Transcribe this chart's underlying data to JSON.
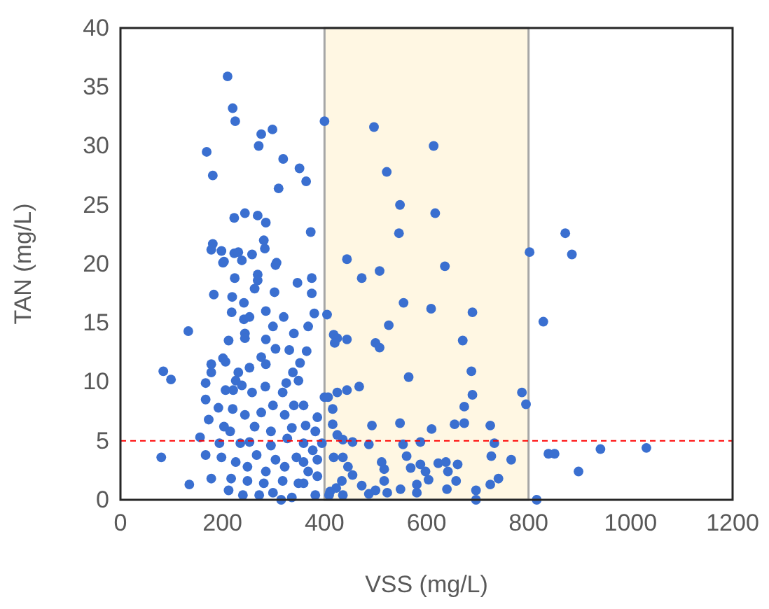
{
  "chart_data": {
    "type": "scatter",
    "xlabel": "VSS (mg/L)",
    "ylabel": "TAN (mg/L)",
    "xlim": [
      0,
      1200
    ],
    "xticks": [
      0,
      200,
      400,
      600,
      800,
      1000,
      1200
    ],
    "ylim": [
      0,
      40
    ],
    "yticks": [
      0,
      5,
      10,
      15,
      20,
      25,
      30,
      35,
      40
    ],
    "marker": "circle",
    "bands": [
      {
        "axis": "x",
        "from": 400,
        "to": 800,
        "color": "#fff7e3"
      }
    ],
    "ref_lines": [
      {
        "axis": "y",
        "value": 5,
        "color": "#ff0000",
        "line_style": "dashed"
      }
    ],
    "series": [
      {
        "color": "#3a6fd0",
        "x": [
          210,
          220,
          225,
          276,
          298,
          271,
          169,
          319,
          351,
          364,
          181,
          310,
          400,
          223,
          244,
          269,
          285,
          373,
          181,
          178,
          198,
          223,
          231,
          258,
          281,
          283,
          238,
          201,
          306,
          497,
          614,
          522,
          548,
          617,
          546,
          444,
          802,
          636,
          473,
          508,
          555,
          609,
          690,
          526,
          405,
          671,
          500,
          508,
          418,
          425,
          444,
          420,
          688,
          565,
          787,
          795,
          690,
          674,
          468,
          444,
          425,
          407,
          416,
          493,
          548,
          655,
          674,
          725,
          610,
          416,
          425,
          436,
          455,
          487,
          554,
          588,
          733,
          727,
          766,
          561,
          512,
          436,
          418,
          446,
          455,
          517,
          569,
          588,
          598,
          623,
          638,
          642,
          661,
          658,
          604,
          581,
          549,
          517,
          500,
          473,
          434,
          423,
          436,
          487,
          523,
          581,
          640,
          697,
          697,
          725,
          741,
          409,
          816,
          872,
          885,
          829,
          839,
          851,
          941,
          1031,
          898,
          133,
          84,
          99,
          80,
          135,
          156,
          178,
          167,
          173,
          167,
          167,
          178,
          178,
          201,
          206,
          212,
          183,
          219,
          242,
          218,
          242,
          253,
          285,
          320,
          299,
          244,
          244,
          285,
          340,
          368,
          380,
          304,
          331,
          365,
          276,
          285,
          352,
          253,
          231,
          226,
          238,
          221,
          206,
          192,
          220,
          258,
          284,
          325,
          338,
          349,
          318,
          340,
          299,
          276,
          244,
          322,
          359,
          386,
          400,
          263,
          295,
          336,
          363,
          382,
          203,
          215,
          194,
          235,
          253,
          295,
          327,
          359,
          377,
          395,
          198,
          226,
          267,
          304,
          345,
          359,
          386,
          249,
          285,
          322,
          368,
          217,
          249,
          281,
          318,
          349,
          386,
          212,
          240,
          272,
          299,
          315,
          336,
          359,
          382,
          411,
          269,
          269,
          304,
          203,
          224,
          263,
          302,
          347,
          375,
          375
        ],
        "values": [
          35.9,
          33.2,
          32.1,
          31.0,
          31.4,
          30.0,
          29.5,
          28.9,
          28.1,
          27.0,
          27.5,
          26.4,
          32.1,
          23.9,
          24.3,
          24.1,
          23.5,
          22.7,
          21.7,
          21.2,
          21.1,
          20.9,
          21.0,
          20.8,
          22.0,
          21.3,
          20.3,
          20.1,
          20.1,
          31.6,
          30.0,
          27.8,
          25.0,
          24.3,
          22.6,
          20.4,
          21.0,
          19.8,
          18.8,
          19.4,
          16.7,
          16.2,
          15.9,
          14.8,
          15.7,
          13.5,
          13.3,
          12.9,
          14.0,
          13.7,
          13.6,
          13.3,
          10.9,
          10.4,
          9.1,
          8.1,
          8.9,
          7.9,
          9.6,
          9.3,
          9.1,
          8.7,
          7.7,
          6.3,
          6.5,
          6.4,
          6.5,
          6.3,
          6.0,
          6.4,
          5.5,
          5.1,
          4.9,
          4.7,
          4.7,
          4.9,
          4.8,
          3.7,
          3.4,
          3.7,
          3.2,
          3.6,
          3.6,
          2.8,
          2.1,
          2.6,
          2.7,
          3.0,
          2.4,
          3.1,
          3.2,
          2.4,
          3.0,
          1.6,
          1.7,
          1.3,
          0.9,
          1.6,
          0.8,
          1.2,
          1.6,
          1.0,
          0.4,
          0.5,
          0.6,
          0.6,
          0.9,
          0.8,
          0.0,
          1.3,
          1.8,
          0.4,
          0.0,
          22.6,
          20.8,
          15.1,
          3.9,
          3.9,
          4.3,
          4.4,
          2.4,
          14.3,
          10.9,
          10.2,
          3.6,
          1.3,
          5.3,
          1.8,
          3.8,
          6.8,
          8.5,
          9.9,
          10.8,
          11.5,
          12.0,
          11.7,
          13.5,
          17.4,
          17.2,
          16.7,
          15.9,
          15.3,
          15.5,
          16.0,
          15.5,
          14.7,
          14.1,
          13.7,
          13.6,
          14.1,
          14.7,
          15.8,
          12.8,
          12.7,
          12.6,
          12.1,
          11.5,
          11.6,
          11.2,
          10.8,
          10.1,
          9.7,
          9.3,
          9.3,
          7.8,
          7.7,
          9.1,
          9.6,
          9.9,
          10.8,
          10.1,
          9.1,
          8.0,
          8.0,
          7.4,
          7.2,
          7.2,
          8.0,
          7.0,
          8.7,
          6.2,
          5.8,
          6.1,
          6.3,
          5.8,
          6.2,
          5.8,
          4.8,
          4.8,
          4.9,
          4.6,
          5.2,
          4.8,
          4.2,
          4.8,
          3.6,
          3.2,
          3.8,
          3.4,
          3.6,
          3.2,
          3.4,
          2.8,
          2.4,
          2.8,
          2.4,
          1.8,
          1.6,
          1.4,
          1.6,
          1.4,
          2.0,
          0.8,
          0.4,
          0.4,
          0.6,
          0.0,
          0.2,
          1.4,
          0.4,
          0.7,
          19.1,
          18.6,
          19.9,
          20.2,
          18.8,
          17.9,
          17.6,
          18.4,
          18.8,
          17.5
        ]
      }
    ]
  }
}
